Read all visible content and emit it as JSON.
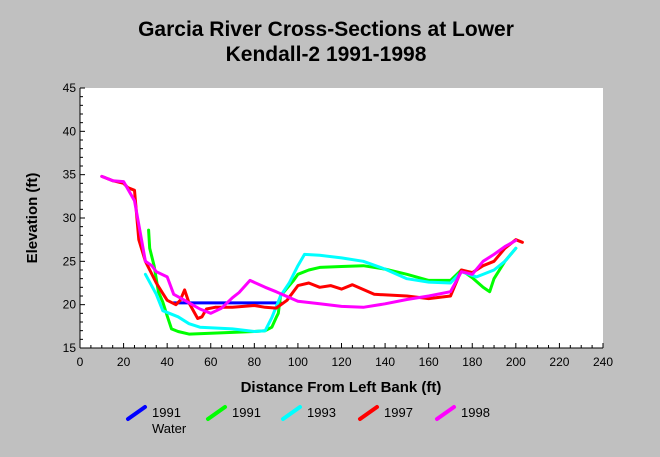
{
  "chart_data": {
    "type": "line",
    "title": [
      "Garcia River Cross-Sections at Lower",
      "Kendall-2 1991-1998"
    ],
    "xlabel": "Distance From Left Bank (ft)",
    "ylabel": "Elevation (ft)",
    "xlim": [
      0,
      240
    ],
    "ylim": [
      15,
      45
    ],
    "xticks": [
      0,
      20,
      40,
      60,
      80,
      100,
      120,
      140,
      160,
      180,
      200,
      220,
      240
    ],
    "yticks": [
      15,
      20,
      25,
      30,
      35,
      40,
      45
    ],
    "grid": false,
    "legend_position": "bottom",
    "series": [
      {
        "name": [
          "1991",
          "Water"
        ],
        "color": "#0000ff",
        "points": [
          [
            43,
            20.2
          ],
          [
            92,
            20.2
          ]
        ]
      },
      {
        "name": [
          "1991"
        ],
        "color": "#00ff00",
        "points": [
          [
            31.5,
            28.6
          ],
          [
            32,
            26.5
          ],
          [
            34,
            24.5
          ],
          [
            36,
            21.5
          ],
          [
            38,
            20.3
          ],
          [
            40,
            18.7
          ],
          [
            42,
            17.2
          ],
          [
            45,
            16.9
          ],
          [
            50,
            16.6
          ],
          [
            60,
            16.7
          ],
          [
            70,
            16.8
          ],
          [
            80,
            16.9
          ],
          [
            85,
            17.0
          ],
          [
            88,
            17.4
          ],
          [
            90,
            18.5
          ],
          [
            91,
            19.0
          ],
          [
            92,
            21.0
          ],
          [
            95,
            21.9
          ],
          [
            98,
            22.8
          ],
          [
            100,
            23.5
          ],
          [
            105,
            24.0
          ],
          [
            110,
            24.3
          ],
          [
            120,
            24.4
          ],
          [
            130,
            24.5
          ],
          [
            140,
            24.1
          ],
          [
            150,
            23.5
          ],
          [
            160,
            22.8
          ],
          [
            170,
            22.8
          ],
          [
            175,
            24.0
          ],
          [
            180,
            23.1
          ],
          [
            185,
            22.0
          ],
          [
            188,
            21.5
          ],
          [
            190,
            23.0
          ],
          [
            195,
            25.0
          ],
          [
            200,
            26.5
          ]
        ]
      },
      {
        "name": [
          "1993"
        ],
        "color": "#00ffff",
        "points": [
          [
            30,
            23.5
          ],
          [
            35,
            21.2
          ],
          [
            38,
            19.3
          ],
          [
            45,
            18.6
          ],
          [
            50,
            17.8
          ],
          [
            55,
            17.4
          ],
          [
            70,
            17.2
          ],
          [
            80,
            16.9
          ],
          [
            85,
            17.0
          ],
          [
            88,
            18.5
          ],
          [
            92,
            21.0
          ],
          [
            96,
            22.5
          ],
          [
            100,
            24.5
          ],
          [
            103,
            25.8
          ],
          [
            110,
            25.7
          ],
          [
            120,
            25.4
          ],
          [
            130,
            25.0
          ],
          [
            140,
            24.1
          ],
          [
            150,
            23.0
          ],
          [
            160,
            22.6
          ],
          [
            170,
            22.5
          ],
          [
            175,
            23.8
          ],
          [
            182,
            23.2
          ],
          [
            190,
            24.0
          ],
          [
            195,
            25.0
          ],
          [
            200,
            26.5
          ]
        ]
      },
      {
        "name": [
          "1997"
        ],
        "color": "#ff0000",
        "points": [
          [
            10,
            34.8
          ],
          [
            15,
            34.3
          ],
          [
            20,
            34.0
          ],
          [
            22,
            33.5
          ],
          [
            25,
            33.2
          ],
          [
            27,
            27.5
          ],
          [
            30,
            25.0
          ],
          [
            35,
            22.5
          ],
          [
            38,
            21.3
          ],
          [
            40,
            20.5
          ],
          [
            44,
            20.0
          ],
          [
            46,
            20.5
          ],
          [
            48,
            21.7
          ],
          [
            50,
            20.2
          ],
          [
            54,
            18.4
          ],
          [
            56,
            18.6
          ],
          [
            58,
            19.5
          ],
          [
            62,
            19.7
          ],
          [
            70,
            19.7
          ],
          [
            80,
            19.9
          ],
          [
            85,
            19.7
          ],
          [
            90,
            19.6
          ],
          [
            95,
            20.5
          ],
          [
            100,
            22.2
          ],
          [
            105,
            22.5
          ],
          [
            110,
            22.0
          ],
          [
            115,
            22.2
          ],
          [
            120,
            21.8
          ],
          [
            125,
            22.3
          ],
          [
            135,
            21.2
          ],
          [
            150,
            21.0
          ],
          [
            160,
            20.7
          ],
          [
            170,
            21.0
          ],
          [
            175,
            24.0
          ],
          [
            180,
            23.7
          ],
          [
            185,
            24.5
          ],
          [
            190,
            25.0
          ],
          [
            195,
            26.5
          ],
          [
            200,
            27.5
          ],
          [
            203,
            27.2
          ]
        ]
      },
      {
        "name": [
          "1998"
        ],
        "color": "#ff00ff",
        "points": [
          [
            10,
            34.8
          ],
          [
            15,
            34.3
          ],
          [
            20,
            34.2
          ],
          [
            25,
            32.0
          ],
          [
            30,
            25.0
          ],
          [
            33,
            24.5
          ],
          [
            35,
            23.8
          ],
          [
            40,
            23.2
          ],
          [
            43,
            21.2
          ],
          [
            48,
            20.5
          ],
          [
            55,
            19.5
          ],
          [
            60,
            19.0
          ],
          [
            65,
            19.6
          ],
          [
            70,
            20.8
          ],
          [
            73,
            21.4
          ],
          [
            78,
            22.8
          ],
          [
            85,
            22.0
          ],
          [
            90,
            21.5
          ],
          [
            100,
            20.4
          ],
          [
            110,
            20.1
          ],
          [
            120,
            19.8
          ],
          [
            130,
            19.7
          ],
          [
            140,
            20.1
          ],
          [
            150,
            20.6
          ],
          [
            160,
            21.0
          ],
          [
            170,
            21.5
          ],
          [
            175,
            23.8
          ],
          [
            180,
            23.5
          ],
          [
            185,
            25.0
          ],
          [
            190,
            25.8
          ],
          [
            195,
            26.7
          ],
          [
            200,
            27.4
          ]
        ]
      }
    ]
  }
}
